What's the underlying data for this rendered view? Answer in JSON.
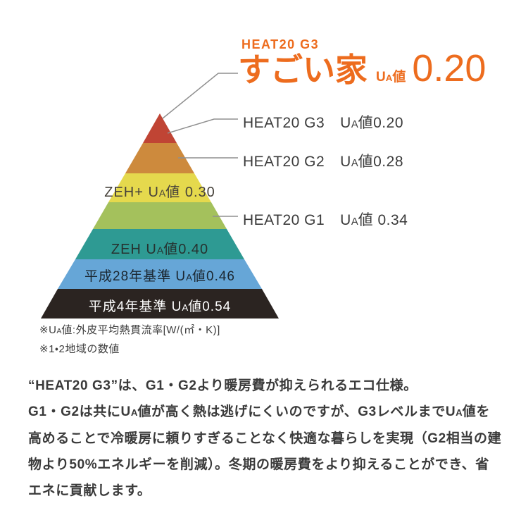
{
  "colors": {
    "accent": "#ed6c1e",
    "text": "#3a3a3a",
    "leader": "#8f8f8f"
  },
  "header": {
    "tagline": "HEAT20 G3",
    "title": "すごい家",
    "ua_label": "UA値",
    "ua_value": "0.20"
  },
  "pyramid": {
    "layers": [
      {
        "name": "HEAT20 G3",
        "ua": "0.20",
        "color": "#c04434",
        "label": "",
        "label_color": ""
      },
      {
        "name": "HEAT20 G2",
        "ua": "0.28",
        "color": "#cd8a3d",
        "label": "",
        "label_color": ""
      },
      {
        "name": "ZEH+",
        "ua": "0.30",
        "color": "#e5d94d",
        "label": "ZEH+ UA値 0.30",
        "label_color": "#46413a"
      },
      {
        "name": "HEAT20 G1",
        "ua": "0.34",
        "color": "#a4c15c",
        "label": "",
        "label_color": ""
      },
      {
        "name": "ZEH",
        "ua": "0.40",
        "color": "#2e9a93",
        "label": "ZEH UA値0.40",
        "label_color": "#263230"
      },
      {
        "name": "平成28年基準",
        "ua": "0.46",
        "color": "#66a6d7",
        "label": "平成28年基準 UA値0.46",
        "label_color": "#1b2731"
      },
      {
        "name": "平成4年基準",
        "ua": "0.54",
        "color": "#2b2421",
        "label": "平成4年基準 UA値0.54",
        "label_color": "#ffffff"
      }
    ]
  },
  "side_labels": [
    {
      "name": "HEAT20 G3",
      "value": "UA値0.20"
    },
    {
      "name": "HEAT20 G2",
      "value": "UA値0.28"
    },
    {
      "name": "HEAT20 G1",
      "value": "UA値 0.34"
    }
  ],
  "footnotes": {
    "line1": "※UA値:外皮平均熱貫流率[W/(㎡・K)]",
    "line2": "※1・2地域の数値"
  },
  "body": {
    "line1": "“HEAT20 G3”は、G1・G2より暖房費が抑えられるエコ仕様。",
    "line2": "G1・G2は共にUA値が高く熱は逃げにくいのですが、G3レベルまでUA値を",
    "line3": "高めることで冷暖房に頼りすぎることなく快適な暮らしを実現（G2相当の建",
    "line4": "物より50%エネルギーを削減）。冬期の暖房費をより抑えることができ、省",
    "line5": "エネに貢献します。"
  }
}
